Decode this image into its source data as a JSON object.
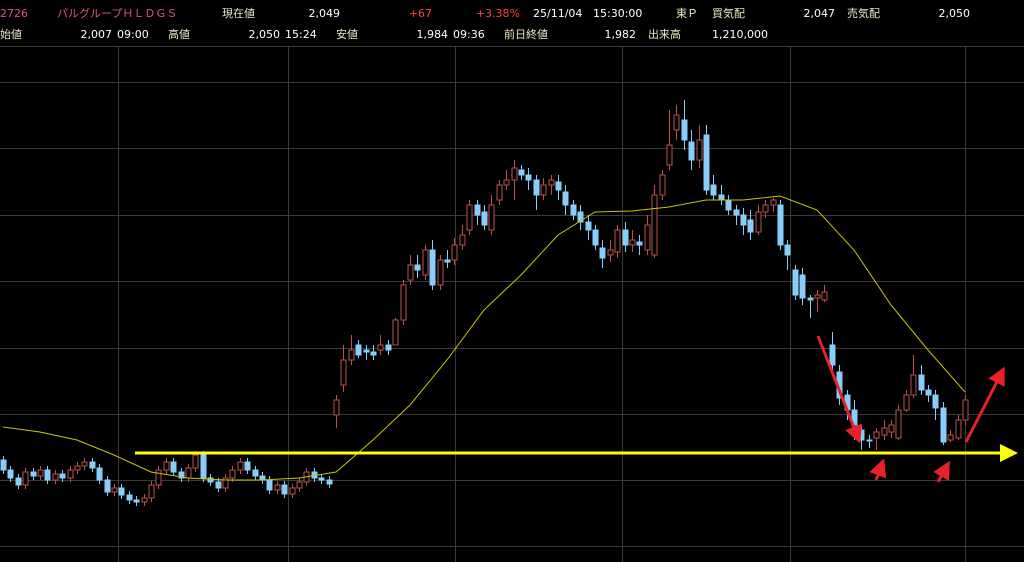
{
  "header": {
    "row1": [
      "2726",
      "パルグループＨＬＤＧＳ",
      "現在値",
      "2,049",
      "+67",
      "+3.38%",
      "25/11/04",
      "15:30:00",
      "東Ｐ",
      "買気配",
      "2,047",
      "売気配",
      "2,050"
    ],
    "row2": [
      "始値",
      "2,007",
      "09:00",
      "高値",
      "2,050",
      "15:24",
      "安値",
      "1,984",
      "09:36",
      "前日終値",
      "1,982",
      "出来高",
      "1,210,000"
    ]
  },
  "chart_data": {
    "type": "candlestick",
    "up_color": "#c0504d",
    "down_color": "#87cefa",
    "ylim": [
      1806,
      2583
    ],
    "yticks": [
      2526,
      2427,
      2327,
      2228,
      2127,
      2028,
      1929,
      1830
    ],
    "grid": true,
    "open": [
      1959,
      1944,
      1932,
      1921.5,
      1941,
      1935,
      1944,
      1929,
      1938,
      1932,
      1944,
      1950,
      1956,
      1947,
      1929,
      1911,
      1917,
      1906.5,
      1899,
      1896,
      1902,
      1921.5,
      1944,
      1956,
      1941,
      1932,
      1947,
      1966.5,
      1932,
      1926,
      1917,
      1932,
      1944,
      1956,
      1944,
      1935,
      1929,
      1914,
      1921.5,
      1908,
      1917,
      1926,
      1941,
      1932,
      1929,
      2026.5,
      2071.5,
      2109,
      2131.5,
      2124,
      2121,
      2124,
      2131.5,
      2131.5,
      2169,
      2229,
      2251.5,
      2236.5,
      2274,
      2221.5,
      2259,
      2259,
      2281.5,
      2304,
      2341.5,
      2331,
      2304,
      2349,
      2371.5,
      2379,
      2394,
      2386.5,
      2379,
      2356.5,
      2371.5,
      2376,
      2361,
      2341.5,
      2331,
      2316,
      2304,
      2277,
      2266.5,
      2271,
      2304,
      2281.5,
      2286,
      2274,
      2266.5,
      2356.5,
      2401.5,
      2454,
      2469,
      2436,
      2409,
      2446.5,
      2371.5,
      2356.5,
      2349,
      2334,
      2326.5,
      2319,
      2301,
      2331,
      2341.5,
      2341.5,
      2281.5,
      2244,
      2236.5,
      2202,
      2202,
      2199,
      2131.5,
      2091,
      2056.5,
      2034,
      2004,
      1989,
      1992,
      1996.5,
      2001,
      1992,
      2034,
      2056.5,
      2086.5,
      2064,
      2056.5,
      2037,
      1989,
      1992,
      2019
    ],
    "high": [
      1965,
      1950,
      1938,
      1947,
      1947,
      1950,
      1950,
      1944,
      1944,
      1950,
      1956,
      1962,
      1962,
      1953,
      1935,
      1923,
      1923,
      1912.5,
      1905,
      1908,
      1927.5,
      1950,
      1962,
      1962,
      1947,
      1953,
      1972.5,
      1972.5,
      1938,
      1932,
      1938,
      1950,
      1962,
      1962,
      1950,
      1941,
      1935,
      1927.5,
      1927.5,
      1923,
      1932,
      1947,
      1947,
      1938,
      1935,
      2056.5,
      2131.5,
      2146.5,
      2139,
      2131.5,
      2131.5,
      2146.5,
      2139,
      2172,
      2229,
      2266.5,
      2266.5,
      2281.5,
      2289,
      2266.5,
      2274,
      2292,
      2311.5,
      2349,
      2349,
      2341.5,
      2356.5,
      2379,
      2394,
      2409,
      2401.5,
      2397,
      2386.5,
      2382,
      2386.5,
      2386.5,
      2371.5,
      2349,
      2341.5,
      2326.5,
      2311.5,
      2289,
      2289,
      2311.5,
      2316,
      2304,
      2296.5,
      2326.5,
      2371.5,
      2394,
      2484,
      2491.5,
      2499,
      2454,
      2461.5,
      2461.5,
      2386.5,
      2371.5,
      2356.5,
      2341.5,
      2337,
      2334,
      2341.5,
      2349,
      2352,
      2349,
      2289,
      2251.5,
      2247,
      2206.5,
      2214,
      2221.5,
      2151,
      2101.5,
      2064,
      2049,
      2011.5,
      1996.5,
      2007,
      2019,
      2019,
      2041.5,
      2064,
      2116.5,
      2101.5,
      2071.5,
      2064,
      2046,
      2004,
      2026.5,
      2056.5
    ],
    "low": [
      1938,
      1926,
      1915.5,
      1915.5,
      1929,
      1929,
      1923,
      1923,
      1926,
      1926,
      1938,
      1944,
      1941,
      1923,
      1905,
      1905,
      1900.5,
      1893,
      1890,
      1890,
      1896,
      1915.5,
      1938,
      1935,
      1926,
      1926,
      1941,
      1926,
      1920,
      1911,
      1911,
      1926,
      1938,
      1938,
      1929,
      1923,
      1908,
      1908,
      1902,
      1902,
      1911,
      1920,
      1926,
      1923,
      1917,
      2007,
      2061,
      2101.5,
      2112,
      2109,
      2109,
      2116.5,
      2116.5,
      2131.5,
      2161.5,
      2221.5,
      2232,
      2229,
      2214,
      2214,
      2247,
      2251.5,
      2274,
      2296.5,
      2311.5,
      2304,
      2296.5,
      2341.5,
      2364,
      2349,
      2379,
      2364,
      2334,
      2349,
      2356.5,
      2349,
      2326.5,
      2319,
      2304,
      2289,
      2274,
      2247,
      2256,
      2262,
      2271,
      2271,
      2266.5,
      2266.5,
      2262,
      2349,
      2394,
      2439,
      2424,
      2394,
      2397,
      2356.5,
      2349,
      2341.5,
      2326.5,
      2311.5,
      2296.5,
      2289,
      2296.5,
      2322,
      2331,
      2274,
      2244,
      2199,
      2191.5,
      2172,
      2181,
      2196,
      2086.5,
      2041.5,
      2019,
      1989,
      1974,
      1977,
      1974,
      1989,
      1992,
      1989,
      2031,
      2052,
      2056.5,
      2046,
      2019,
      1981.5,
      1986,
      1989,
      2011.5
    ],
    "close": [
      1944,
      1932,
      1921.5,
      1941,
      1935,
      1944,
      1929,
      1938,
      1932,
      1944,
      1950,
      1956,
      1947,
      1929,
      1911,
      1917,
      1906.5,
      1899,
      1896,
      1902,
      1921.5,
      1944,
      1956,
      1941,
      1932,
      1947,
      1966.5,
      1932,
      1926,
      1917,
      1932,
      1944,
      1956,
      1944,
      1935,
      1929,
      1914,
      1921.5,
      1908,
      1917,
      1926,
      1941,
      1932,
      1929,
      1923,
      2049,
      2109,
      2124,
      2116.5,
      2121,
      2116.5,
      2131.5,
      2124,
      2169,
      2221.5,
      2251.5,
      2244,
      2274,
      2221.5,
      2259,
      2256,
      2281.5,
      2296.5,
      2341.5,
      2326.5,
      2311.5,
      2341.5,
      2371.5,
      2379,
      2397,
      2386.5,
      2379,
      2356.5,
      2371.5,
      2379,
      2364,
      2341.5,
      2326.5,
      2316,
      2304,
      2281.5,
      2262,
      2274,
      2304,
      2281.5,
      2289,
      2281.5,
      2311.5,
      2356.5,
      2386.5,
      2431.5,
      2476.5,
      2439,
      2409,
      2439,
      2364,
      2356.5,
      2349,
      2334,
      2326.5,
      2311.5,
      2301,
      2331,
      2341.5,
      2349,
      2281.5,
      2266.5,
      2206.5,
      2202,
      2199,
      2206.5,
      2211,
      2101.5,
      2052,
      2034,
      2011.5,
      1989,
      1989,
      2001,
      2007,
      2011.5,
      2034,
      2056.5,
      2086.5,
      2064,
      2056.5,
      2037,
      1986,
      1996.5,
      2019,
      2049
    ],
    "ma": {
      "color": "#c8c800",
      "x": [
        0,
        5,
        10,
        15,
        20,
        25,
        30,
        35,
        40,
        45,
        50,
        55,
        60,
        65,
        70,
        75,
        80,
        85,
        90,
        95,
        100,
        105,
        110,
        115,
        120,
        125,
        130
      ],
      "values": [
        2008.5,
        2001,
        1989,
        1966.5,
        1941,
        1932,
        1929,
        1929,
        1932,
        1941,
        1989,
        2041.5,
        2109,
        2184,
        2236.5,
        2296.5,
        2331,
        2332.5,
        2338.5,
        2349,
        2349,
        2355,
        2334,
        2274,
        2191.5,
        2124,
        2061
      ]
    },
    "support_level": 1969.5,
    "support_color": "#ffff00"
  }
}
